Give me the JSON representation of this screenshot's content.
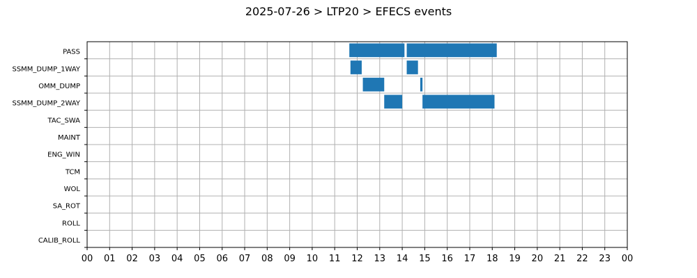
{
  "chart_data": {
    "type": "bar",
    "orientation": "horizontal-timeline",
    "title": "2025-07-26 > LTP20 > EFECS events",
    "xlabel": "",
    "ylabel": "",
    "xlim": [
      0,
      24
    ],
    "x_tick_labels": [
      "00",
      "01",
      "02",
      "03",
      "04",
      "05",
      "06",
      "07",
      "08",
      "09",
      "10",
      "11",
      "12",
      "13",
      "14",
      "15",
      "16",
      "17",
      "18",
      "19",
      "20",
      "21",
      "22",
      "23",
      "00"
    ],
    "grid": true,
    "bar_color": "#1f77b4",
    "categories": [
      "PASS",
      "SSMM_DUMP_1WAY",
      "OMM_DUMP",
      "SSMM_DUMP_2WAY",
      "TAC_SWA",
      "MAINT",
      "ENG_WIN",
      "TCM",
      "WOL",
      "SA_ROT",
      "ROLL",
      "CALIB_ROLL"
    ],
    "series": [
      {
        "category": "PASS",
        "intervals": [
          [
            11.65,
            14.1
          ],
          [
            14.2,
            18.2
          ]
        ]
      },
      {
        "category": "SSMM_DUMP_1WAY",
        "intervals": [
          [
            11.7,
            12.2
          ],
          [
            14.2,
            14.7
          ]
        ]
      },
      {
        "category": "OMM_DUMP",
        "intervals": [
          [
            12.25,
            13.2
          ],
          [
            14.8,
            14.9
          ]
        ]
      },
      {
        "category": "SSMM_DUMP_2WAY",
        "intervals": [
          [
            13.2,
            14.0
          ],
          [
            14.9,
            18.1
          ]
        ]
      },
      {
        "category": "TAC_SWA",
        "intervals": []
      },
      {
        "category": "MAINT",
        "intervals": []
      },
      {
        "category": "ENG_WIN",
        "intervals": []
      },
      {
        "category": "TCM",
        "intervals": []
      },
      {
        "category": "WOL",
        "intervals": []
      },
      {
        "category": "SA_ROT",
        "intervals": []
      },
      {
        "category": "ROLL",
        "intervals": []
      },
      {
        "category": "CALIB_ROLL",
        "intervals": []
      }
    ]
  }
}
